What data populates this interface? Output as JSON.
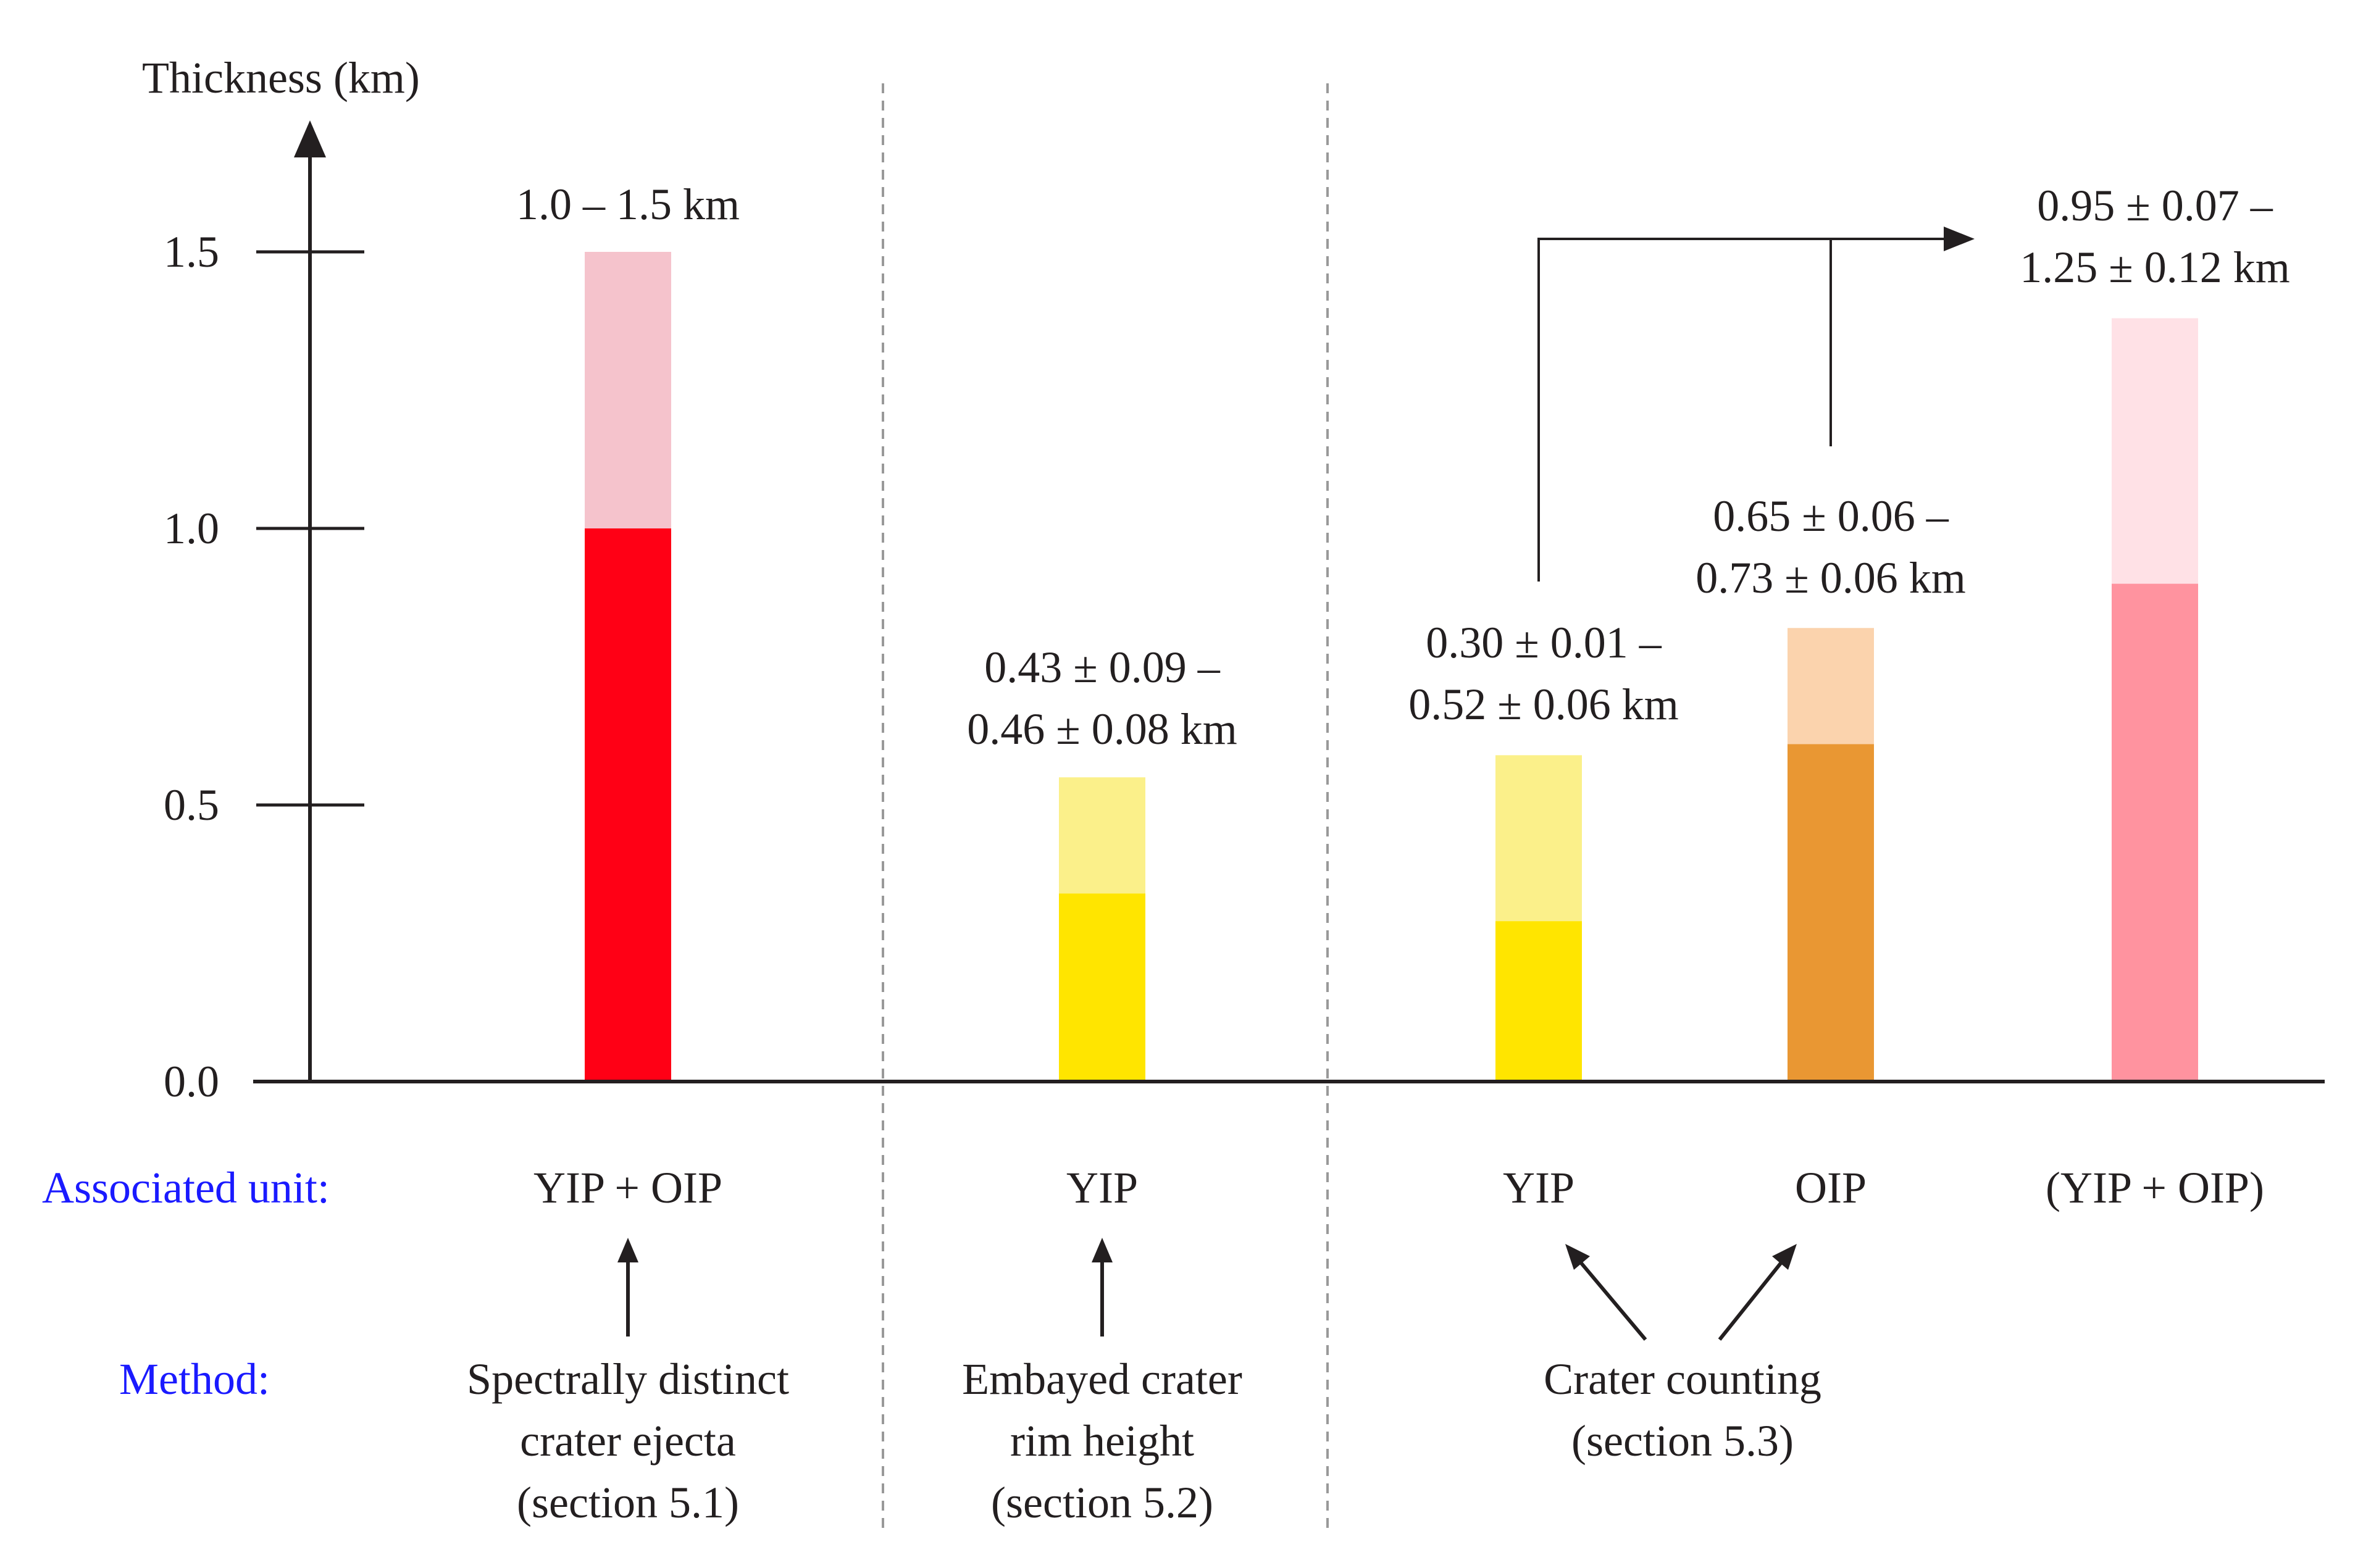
{
  "chart_data": {
    "type": "bar",
    "ylabel": "Thickness (km)",
    "ylim": [
      0,
      1.5
    ],
    "yticks": [
      "0.0",
      "0.5",
      "1.0",
      "1.5"
    ],
    "grid": false,
    "row_labels": {
      "unit": "Associated unit:",
      "method": "Method:"
    },
    "bars": [
      {
        "unit": "YIP + OIP",
        "range_label": [
          "1.0 – 1.5 km"
        ],
        "low": 1.0,
        "high": 1.5,
        "color_dark": "#ff0015",
        "color_light": "#f5c3cc",
        "method": [
          "Spectrally distinct",
          "crater ejecta",
          "(section 5.1)"
        ]
      },
      {
        "unit": "YIP",
        "range_label": [
          "0.43 ± 0.09 –",
          "0.46 ± 0.08 km"
        ],
        "low": 0.34,
        "high": 0.55,
        "color_dark": "#ffe500",
        "color_light": "#fbf08a",
        "method": [
          "Embayed crater",
          "rim height",
          "(section 5.2)"
        ]
      },
      {
        "unit": "YIP",
        "range_label": [
          "0.30 ± 0.01 –",
          "0.52 ± 0.06 km"
        ],
        "low": 0.29,
        "high": 0.59,
        "color_dark": "#ffe500",
        "color_light": "#fbf08a"
      },
      {
        "unit": "OIP",
        "range_label": [
          "0.65 ± 0.06 –",
          "0.73 ± 0.06 km"
        ],
        "low": 0.61,
        "high": 0.82,
        "color_dark": "#e99733",
        "color_light": "#fbd3ad"
      },
      {
        "unit": "(YIP + OIP)",
        "range_label": [
          "0.95 ± 0.07 –",
          "1.25 ± 0.12 km"
        ],
        "low": 0.9,
        "high": 1.38,
        "color_dark": "#ff939f",
        "color_light": "#ffe1e6"
      }
    ],
    "shared_method": [
      "Crater counting",
      "(section 5.3)"
    ]
  }
}
